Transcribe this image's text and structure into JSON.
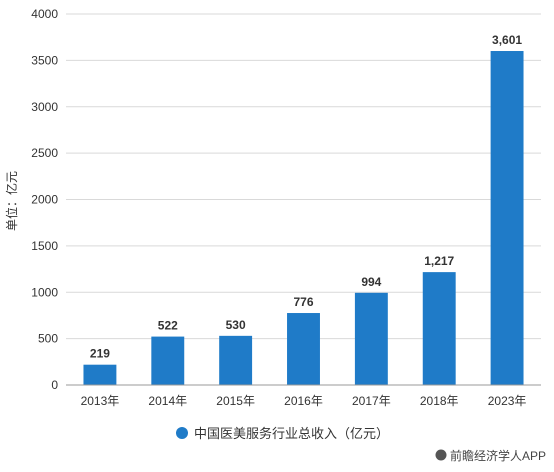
{
  "chart_data": {
    "type": "bar",
    "categories": [
      "2013年",
      "2014年",
      "2015年",
      "2016年",
      "2017年",
      "2018年",
      "2023年"
    ],
    "values": [
      219,
      522,
      530,
      776,
      994,
      1217,
      3601
    ],
    "value_labels": [
      "219",
      "522",
      "530",
      "776",
      "994",
      "1,217",
      "3,601"
    ],
    "ylabel": "单位：亿元",
    "ylim": [
      0,
      4000
    ],
    "yticks": [
      "0",
      "500",
      "1000",
      "1500",
      "2000",
      "2500",
      "3000",
      "3500",
      "4000"
    ],
    "grid": true,
    "series": [
      {
        "name": "中国医美服务行业总收入（亿元）",
        "values": [
          219,
          522,
          530,
          776,
          994,
          1217,
          3601
        ]
      }
    ],
    "legend_position": "bottom-center",
    "bar_color": "#1f7bc8",
    "grid_color": "#d9d9d9"
  },
  "footer": {
    "brand": "前瞻经济学人APP"
  }
}
